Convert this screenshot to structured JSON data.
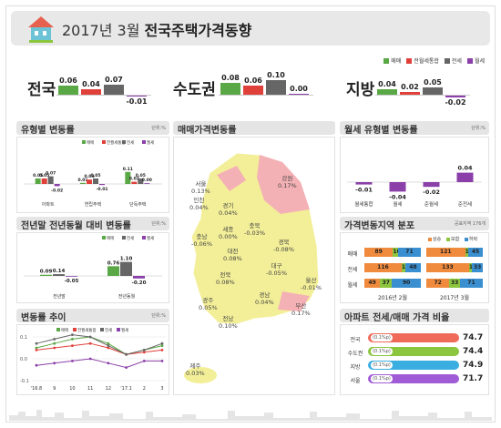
{
  "header": {
    "title_prefix": "2017년 3월",
    "title_main": "전국주택가격동향"
  },
  "legend_top": [
    {
      "label": "매매",
      "color": "#5aa845"
    },
    {
      "label": "전월세통합",
      "color": "#e0403a"
    },
    {
      "label": "전세",
      "color": "#666666"
    },
    {
      "label": "월세",
      "color": "#8b3fa8"
    }
  ],
  "summary": [
    {
      "region": "전국",
      "values": [
        "0.06",
        "0.04",
        "0.07",
        "-0.01"
      ]
    },
    {
      "region": "수도권",
      "values": [
        "0.08",
        "0.06",
        "0.10",
        "0.00"
      ]
    },
    {
      "region": "지방",
      "values": [
        "0.04",
        "0.02",
        "0.05",
        "-0.02"
      ]
    }
  ],
  "panels": {
    "type_change": {
      "title": "유형별 변동률",
      "unit": "단위:%"
    },
    "yoy_change": {
      "title": "전년말 전년동월 대비 변동률",
      "unit": "단위:%"
    },
    "trend": {
      "title": "변동률 추이",
      "unit": "단위:%"
    },
    "map": {
      "title": "매매가격변동률"
    },
    "monthly_rent": {
      "title": "월세 유형별 변동률",
      "unit": "단위:%"
    },
    "distribution": {
      "title": "가격변동지역 분포",
      "unit": "공표지역 176개"
    },
    "ratio": {
      "title": "아파트 전세/매매 가격 비율"
    }
  },
  "type_legend": [
    {
      "label": "매매",
      "color": "#5aa845"
    },
    {
      "label": "전월세통합",
      "color": "#e0403a"
    },
    {
      "label": "전세",
      "color": "#666666"
    },
    {
      "label": "월세",
      "color": "#8b3fa8"
    }
  ],
  "yoy_legend": [
    {
      "label": "매매",
      "color": "#5aa845"
    },
    {
      "label": "전세",
      "color": "#666666"
    },
    {
      "label": "월세",
      "color": "#8b3fa8"
    }
  ],
  "dist_legend": [
    {
      "label": "상승",
      "color": "#f08a3c"
    },
    {
      "label": "보합",
      "color": "#8cc63f"
    },
    {
      "label": "하락",
      "color": "#3a8fd1"
    }
  ],
  "trend_legend": [
    {
      "label": "매매",
      "color": "#5aa845"
    },
    {
      "label": "전월세통합",
      "color": "#e0403a"
    },
    {
      "label": "전세",
      "color": "#666666"
    },
    {
      "label": "월세",
      "color": "#8b3fa8"
    }
  ],
  "map_regions": [
    {
      "name": "서울",
      "value": "0.13%"
    },
    {
      "name": "강원",
      "value": "0.17%"
    },
    {
      "name": "인천",
      "value": "0.04%"
    },
    {
      "name": "경기",
      "value": "0.04%"
    },
    {
      "name": "세종",
      "value": "0.00%"
    },
    {
      "name": "충북",
      "value": "-0.03%"
    },
    {
      "name": "충남",
      "value": "-0.06%"
    },
    {
      "name": "대전",
      "value": "0.08%"
    },
    {
      "name": "경북",
      "value": "-0.08%"
    },
    {
      "name": "전북",
      "value": "0.08%"
    },
    {
      "name": "대구",
      "value": "-0.05%"
    },
    {
      "name": "울산",
      "value": "-0.01%"
    },
    {
      "name": "광주",
      "value": "0.05%"
    },
    {
      "name": "경남",
      "value": "0.04%"
    },
    {
      "name": "전남",
      "value": "0.10%"
    },
    {
      "name": "부산",
      "value": "0.17%"
    },
    {
      "name": "제주",
      "value": "0.03%"
    }
  ],
  "ratio_rows": [
    {
      "label": "전국",
      "pill": "(0.1%p)",
      "value": "74.7",
      "color": "#f06a5a"
    },
    {
      "label": "수도권",
      "pill": "(0.1%p)",
      "value": "74.4",
      "color": "#8cc63f"
    },
    {
      "label": "지방",
      "pill": "(0.1%p)",
      "value": "74.9",
      "color": "#3aaee0"
    },
    {
      "label": "서울",
      "pill": "(0.1%p)",
      "value": "71.7",
      "color": "#a05cd6"
    }
  ],
  "distribution": {
    "row_labels": [
      "매매",
      "전세",
      "월세"
    ],
    "col_labels": [
      "2016년 2월",
      "2017년 3월"
    ],
    "rows": [
      [
        [
          "89",
          "16",
          "71"
        ],
        [
          "121",
          "10",
          "45"
        ]
      ],
      [
        [
          "116",
          "12",
          "48"
        ],
        [
          "133",
          "10",
          "33"
        ]
      ],
      [
        [
          "49",
          "37",
          "90"
        ],
        [
          "72",
          "33",
          "71"
        ]
      ]
    ]
  },
  "chart_data": [
    {
      "type": "bar",
      "title": "유형별 변동률",
      "categories": [
        "아파트",
        "연립주택",
        "단독주택"
      ],
      "series": [
        {
          "name": "매매",
          "values": [
            0.05,
            0.01,
            0.11
          ]
        },
        {
          "name": "전월세통합",
          "values": [
            0.05,
            0.04,
            0.02
          ]
        },
        {
          "name": "전세",
          "values": [
            0.07,
            0.05,
            0.05
          ]
        },
        {
          "name": "월세",
          "values": [
            -0.02,
            -0.01,
            0.0
          ]
        }
      ]
    },
    {
      "type": "bar",
      "title": "전년말 전년동월 대비 변동률",
      "categories": [
        "전년말",
        "전년동월"
      ],
      "series": [
        {
          "name": "매매",
          "values": [
            0.09,
            0.76
          ]
        },
        {
          "name": "전세",
          "values": [
            0.14,
            1.1
          ]
        },
        {
          "name": "월세",
          "values": [
            -0.05,
            -0.2
          ]
        }
      ]
    },
    {
      "type": "bar",
      "title": "월세 유형별 변동률",
      "categories": [
        "월세통합",
        "월세",
        "준월세",
        "준전세"
      ],
      "values": [
        -0.01,
        -0.04,
        -0.02,
        0.04
      ]
    },
    {
      "type": "line",
      "title": "변동률 추이",
      "x": [
        "'16.8",
        "9",
        "10",
        "11",
        "12",
        "'17.1",
        "2",
        "3"
      ],
      "ylim": [
        -0.1,
        0.1
      ],
      "series": [
        {
          "name": "매매",
          "values": [
            0.05,
            0.07,
            0.09,
            0.1,
            0.07,
            0.02,
            0.04,
            0.06
          ]
        },
        {
          "name": "전월세통합",
          "values": [
            0.04,
            0.05,
            0.06,
            0.07,
            0.05,
            0.02,
            0.03,
            0.04
          ]
        },
        {
          "name": "전세",
          "values": [
            0.07,
            0.09,
            0.11,
            0.1,
            0.06,
            0.02,
            0.04,
            0.07
          ]
        },
        {
          "name": "월세",
          "values": [
            -0.03,
            -0.02,
            -0.01,
            0.0,
            -0.02,
            -0.04,
            -0.01,
            -0.01
          ]
        }
      ]
    }
  ]
}
